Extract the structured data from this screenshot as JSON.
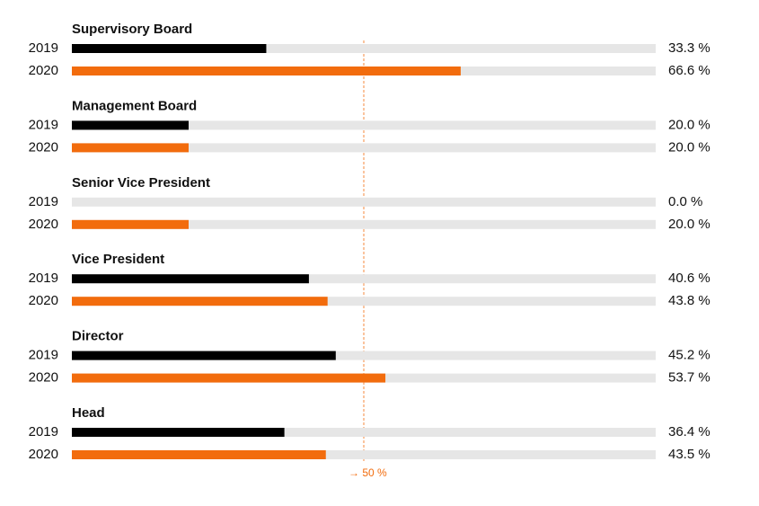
{
  "chart_data": {
    "type": "bar",
    "categories": [
      "Supervisory Board",
      "Management Board",
      "Senior Vice President",
      "Vice President",
      "Director",
      "Head"
    ],
    "series": [
      {
        "name": "2019",
        "color": "#000000",
        "values": [
          33.3,
          20.0,
          0.0,
          40.6,
          45.2,
          36.4
        ],
        "value_labels": [
          "33.3 %",
          "20.0 %",
          "0.0 %",
          "40.6 %",
          "45.2 %",
          "36.4 %"
        ]
      },
      {
        "name": "2020",
        "color": "#f26c0d",
        "values": [
          66.6,
          20.0,
          20.0,
          43.8,
          53.7,
          43.5
        ],
        "value_labels": [
          "66.6 %",
          "20.0 %",
          "20.0 %",
          "43.8 %",
          "53.7 %",
          "43.5 %"
        ]
      }
    ],
    "xlim": [
      0,
      100
    ],
    "reference": {
      "value": 50,
      "label": "→ 50 %",
      "color": "#f26c0d"
    }
  }
}
